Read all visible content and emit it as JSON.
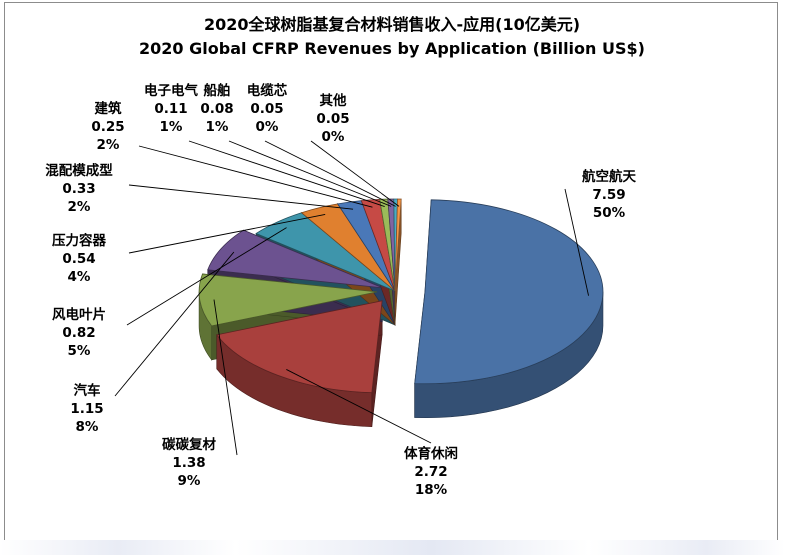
{
  "chart_data": {
    "type": "pie",
    "title": "2020全球树脂基复合材料销售收入-应用(10亿美元)",
    "subtitle": "2020 Global CFRP Revenues by Application (Billion US$)",
    "slices": [
      {
        "label": "航空航天",
        "value": 7.59,
        "value_text": "7.59",
        "percent_text": "50%",
        "color": "#4a72a6"
      },
      {
        "label": "体育休闲",
        "value": 2.72,
        "value_text": "2.72",
        "percent_text": "18%",
        "color": "#a9403d"
      },
      {
        "label": "碳碳复材",
        "value": 1.38,
        "value_text": "1.38",
        "percent_text": "9%",
        "color": "#88a44c"
      },
      {
        "label": "汽车",
        "value": 1.15,
        "value_text": "1.15",
        "percent_text": "8%",
        "color": "#6c5290"
      },
      {
        "label": "风电叶片",
        "value": 0.82,
        "value_text": "0.82",
        "percent_text": "5%",
        "color": "#3e95ab"
      },
      {
        "label": "压力容器",
        "value": 0.54,
        "value_text": "0.54",
        "percent_text": "4%",
        "color": "#e0802f"
      },
      {
        "label": "混配模成型",
        "value": 0.33,
        "value_text": "0.33",
        "percent_text": "2%",
        "color": "#4a78b8"
      },
      {
        "label": "建筑",
        "value": 0.25,
        "value_text": "0.25",
        "percent_text": "2%",
        "color": "#c64a45"
      },
      {
        "label": "电子电气",
        "value": 0.11,
        "value_text": "0.11",
        "percent_text": "1%",
        "color": "#9bbb59"
      },
      {
        "label": "船舶",
        "value": 0.08,
        "value_text": "0.08",
        "percent_text": "1%",
        "color": "#8064a2"
      },
      {
        "label": "电缆芯",
        "value": 0.05,
        "value_text": "0.05",
        "percent_text": "0%",
        "color": "#4bacc6"
      },
      {
        "label": "其他",
        "value": 0.05,
        "value_text": "0.05",
        "percent_text": "0%",
        "color": "#f79646"
      }
    ]
  }
}
